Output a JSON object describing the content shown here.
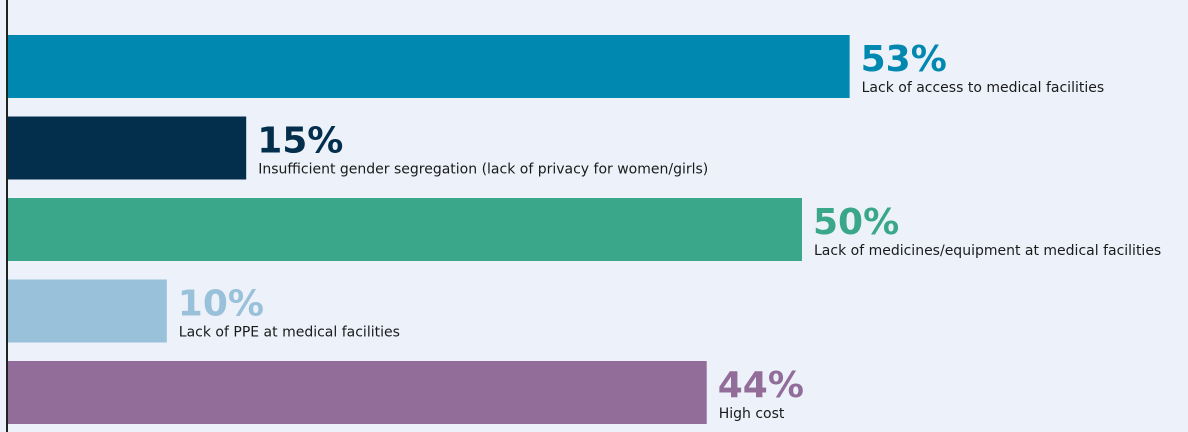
{
  "chart_data": {
    "type": "bar",
    "orientation": "horizontal",
    "categories": [
      "Lack of access to medical facilities",
      "Insufficient gender segregation (lack of privacy for women/girls)",
      "Lack of medicines/equipment at medical facilities",
      "Lack of PPE at medical facilities",
      "High cost"
    ],
    "values": [
      53,
      15,
      50,
      10,
      44
    ],
    "value_labels": [
      "53%",
      "15%",
      "50%",
      "10%",
      "44%"
    ],
    "colors": [
      "#0088b0",
      "#032f4c",
      "#3aa68a",
      "#9ac1da",
      "#926d9a"
    ]
  }
}
